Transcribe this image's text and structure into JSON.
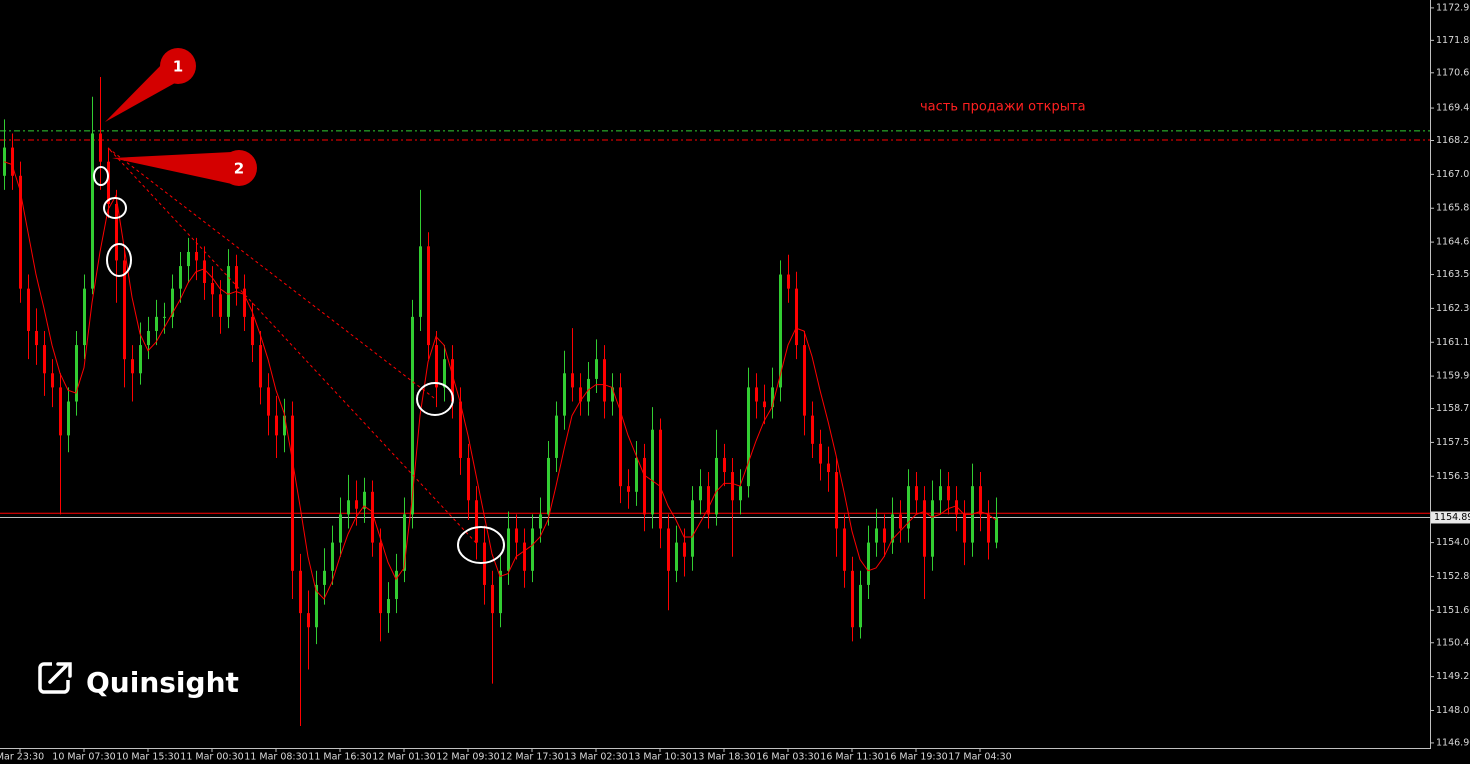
{
  "chart_data": {
    "type": "candlestick",
    "categories": [
      null,
      null,
      "Mar 23:30",
      null,
      null,
      null,
      null,
      null,
      null,
      null,
      "10 Mar 07:30",
      null,
      null,
      null,
      null,
      null,
      null,
      null,
      "10 Mar 15:30",
      null,
      null,
      null,
      null,
      null,
      null,
      null,
      "11 Mar 00:30",
      null,
      null,
      null,
      null,
      null,
      null,
      null,
      "11 Mar 08:30",
      null,
      null,
      null,
      null,
      null,
      null,
      null,
      "11 Mar 16:30",
      null,
      null,
      null,
      null,
      null,
      null,
      null,
      "12 Mar 01:30",
      null,
      null,
      null,
      null,
      null,
      null,
      null,
      "12 Mar 09:30",
      null,
      null,
      null,
      null,
      null,
      null,
      null,
      "12 Mar 17:30",
      null,
      null,
      null,
      null,
      null,
      null,
      null,
      "13 Mar 02:30",
      null,
      null,
      null,
      null,
      null,
      null,
      null,
      "13 Mar 10:30",
      null,
      null,
      null,
      null,
      null,
      null,
      null,
      "13 Mar 18:30",
      null,
      null,
      null,
      null,
      null,
      null,
      null,
      "16 Mar 03:30",
      null,
      null,
      null,
      null,
      null,
      null,
      null,
      "16 Mar 11:30",
      null,
      null,
      null,
      null,
      null,
      null,
      null,
      "16 Mar 19:30",
      null,
      null,
      null,
      null,
      null,
      null,
      null,
      "17 Mar 04:30",
      null,
      null
    ],
    "open": [
      1167.0,
      1168.0,
      1167.0,
      1163.0,
      1161.5,
      1161.0,
      1160.0,
      1159.5,
      1157.8,
      1159.0,
      1161.0,
      1163.0,
      1168.5,
      1167.5,
      1166.0,
      1164.0,
      1160.5,
      1160.0,
      1161.0,
      1161.5,
      1162.0,
      1162.0,
      1163.0,
      1163.8,
      1164.3,
      1164.0,
      1163.2,
      1162.8,
      1162.0,
      1163.8,
      1163.0,
      1162.0,
      1161.0,
      1159.5,
      1158.5,
      1157.8,
      1158.5,
      1153.0,
      1151.5,
      1151.0,
      1152.5,
      1153.0,
      1154.0,
      1155.0,
      1155.5,
      1155.2,
      1155.8,
      1154.0,
      1151.5,
      1152.0,
      1153.0,
      1155.0,
      1162.0,
      1164.5,
      1161.0,
      1159.5,
      1160.5,
      1159.0,
      1157.0,
      1155.5,
      1154.0,
      1152.5,
      1151.5,
      1153.0,
      1154.5,
      1154.0,
      1153.0,
      1154.5,
      1155.0,
      1157.0,
      1158.5,
      1160.0,
      1159.5,
      1159.0,
      1159.8,
      1160.5,
      1159.0,
      1159.5,
      1156.0,
      1155.8,
      1157.0,
      1155.0,
      1158.0,
      1154.5,
      1153.0,
      1154.0,
      1153.5,
      1155.5,
      1156.0,
      1155.0,
      1157.0,
      1156.5,
      1155.5,
      1156.0,
      1159.5,
      1159.0,
      1158.8,
      1159.5,
      1163.5,
      1163.0,
      1161.0,
      1158.5,
      1157.5,
      1156.8,
      1156.5,
      1154.5,
      1153.0,
      1151.0,
      1152.5,
      1154.0,
      1154.5,
      1154.0,
      1155.0,
      1154.5,
      1156.0,
      1155.5,
      1153.5,
      1155.5,
      1156.0,
      1155.5,
      1155.0,
      1154.0,
      1156.0,
      1155.0,
      1154.0
    ],
    "high": [
      1169.0,
      1168.5,
      1167.5,
      1163.5,
      1162.3,
      1161.5,
      1160.5,
      1160.0,
      1159.5,
      1161.5,
      1163.5,
      1169.8,
      1170.5,
      1168.0,
      1166.5,
      1164.5,
      1161.0,
      1161.8,
      1162.0,
      1162.6,
      1162.5,
      1163.5,
      1164.3,
      1164.8,
      1164.8,
      1164.5,
      1163.8,
      1163.3,
      1164.4,
      1164.2,
      1163.5,
      1162.5,
      1161.5,
      1160.0,
      1159.2,
      1159.1,
      1159.0,
      1153.6,
      1152.3,
      1153.0,
      1153.8,
      1154.6,
      1155.6,
      1156.4,
      1156.2,
      1156.3,
      1156.2,
      1154.5,
      1152.6,
      1153.6,
      1155.6,
      1162.6,
      1166.5,
      1165.0,
      1161.5,
      1161.0,
      1161.0,
      1159.5,
      1157.5,
      1156.0,
      1154.6,
      1153.0,
      1153.6,
      1155.1,
      1155.0,
      1154.5,
      1155.0,
      1155.6,
      1157.6,
      1159.0,
      1160.8,
      1161.6,
      1160.0,
      1160.4,
      1161.2,
      1161.0,
      1160.0,
      1160.0,
      1156.6,
      1157.6,
      1157.5,
      1158.8,
      1158.4,
      1155.0,
      1154.6,
      1154.5,
      1156.0,
      1156.6,
      1156.5,
      1158.0,
      1157.5,
      1157.0,
      1156.6,
      1160.2,
      1160.0,
      1159.6,
      1160.2,
      1164.0,
      1164.2,
      1163.6,
      1161.5,
      1159.0,
      1158.0,
      1157.4,
      1157.0,
      1155.0,
      1153.5,
      1153.0,
      1154.6,
      1155.2,
      1155.0,
      1155.6,
      1155.5,
      1156.6,
      1156.5,
      1156.0,
      1156.2,
      1156.6,
      1156.5,
      1156.0,
      1155.5,
      1156.8,
      1156.5,
      1155.5,
      1155.6
    ],
    "low": [
      1166.5,
      1166.5,
      1162.5,
      1160.5,
      1160.3,
      1159.2,
      1158.8,
      1155.0,
      1157.2,
      1158.5,
      1160.5,
      1162.8,
      1166.5,
      1165.5,
      1162.5,
      1159.5,
      1159.0,
      1159.6,
      1160.5,
      1161.0,
      1161.4,
      1161.6,
      1162.5,
      1163.2,
      1163.3,
      1162.6,
      1162.0,
      1161.4,
      1161.6,
      1162.4,
      1161.5,
      1160.4,
      1158.9,
      1157.8,
      1157.0,
      1157.2,
      1152.0,
      1147.5,
      1149.5,
      1150.4,
      1151.8,
      1152.5,
      1153.5,
      1154.5,
      1154.6,
      1154.7,
      1153.5,
      1150.5,
      1150.8,
      1151.5,
      1152.6,
      1154.5,
      1161.5,
      1160.5,
      1158.8,
      1159.0,
      1158.4,
      1156.4,
      1154.8,
      1153.4,
      1151.8,
      1149.0,
      1151.0,
      1152.5,
      1153.4,
      1152.4,
      1152.6,
      1154.0,
      1154.6,
      1156.5,
      1158.0,
      1159.0,
      1158.5,
      1158.5,
      1159.3,
      1158.4,
      1158.5,
      1155.4,
      1155.2,
      1155.3,
      1154.4,
      1154.5,
      1153.8,
      1151.6,
      1152.6,
      1152.8,
      1153.0,
      1155.0,
      1154.5,
      1154.6,
      1156.0,
      1153.5,
      1155.0,
      1155.6,
      1158.4,
      1158.2,
      1158.4,
      1159.0,
      1162.5,
      1160.5,
      1157.8,
      1157.0,
      1156.2,
      1155.8,
      1153.5,
      1152.4,
      1150.5,
      1150.6,
      1152.0,
      1153.5,
      1153.5,
      1153.6,
      1154.0,
      1154.0,
      1155.0,
      1152.0,
      1153.0,
      1155.0,
      1155.0,
      1154.4,
      1153.2,
      1153.5,
      1154.4,
      1153.4,
      1153.8
    ],
    "close": [
      1168.0,
      1167.0,
      1163.0,
      1161.5,
      1161.0,
      1160.0,
      1159.5,
      1157.8,
      1159.0,
      1161.0,
      1163.0,
      1168.5,
      1167.5,
      1166.0,
      1164.0,
      1160.5,
      1160.0,
      1161.0,
      1161.5,
      1162.0,
      1162.0,
      1163.0,
      1163.8,
      1164.3,
      1164.0,
      1163.2,
      1162.8,
      1162.0,
      1163.8,
      1163.0,
      1162.0,
      1161.0,
      1159.5,
      1158.5,
      1157.8,
      1158.5,
      1153.0,
      1151.5,
      1151.0,
      1152.5,
      1153.0,
      1154.0,
      1155.0,
      1155.5,
      1155.2,
      1155.8,
      1154.0,
      1151.5,
      1152.0,
      1153.0,
      1155.0,
      1162.0,
      1164.5,
      1161.0,
      1159.5,
      1160.5,
      1159.0,
      1157.0,
      1155.5,
      1154.0,
      1152.5,
      1151.5,
      1153.0,
      1154.5,
      1154.0,
      1153.0,
      1154.5,
      1155.0,
      1157.0,
      1158.5,
      1160.0,
      1159.5,
      1159.0,
      1159.8,
      1160.5,
      1159.0,
      1159.5,
      1156.0,
      1155.8,
      1157.0,
      1155.0,
      1158.0,
      1154.5,
      1153.0,
      1154.0,
      1153.5,
      1155.5,
      1156.0,
      1155.0,
      1157.0,
      1156.5,
      1155.5,
      1156.0,
      1159.5,
      1159.0,
      1158.8,
      1159.5,
      1163.5,
      1163.0,
      1161.0,
      1158.5,
      1157.5,
      1156.8,
      1156.5,
      1154.5,
      1153.0,
      1151.0,
      1152.5,
      1154.0,
      1154.5,
      1154.0,
      1155.0,
      1154.5,
      1156.0,
      1155.5,
      1153.5,
      1155.5,
      1156.0,
      1155.5,
      1155.0,
      1154.0,
      1156.0,
      1155.0,
      1154.0,
      1154.9
    ],
    "ma": [
      1167.5,
      1167.4,
      1166.5,
      1165.0,
      1163.5,
      1162.3,
      1161.0,
      1160.0,
      1159.4,
      1159.3,
      1160.2,
      1162.5,
      1164.3,
      1165.8,
      1166.3,
      1164.5,
      1162.7,
      1161.4,
      1160.8,
      1161.1,
      1161.6,
      1162.1,
      1162.6,
      1163.2,
      1163.6,
      1163.7,
      1163.4,
      1163.0,
      1162.8,
      1162.9,
      1162.8,
      1162.2,
      1161.4,
      1160.5,
      1159.4,
      1158.6,
      1157.0,
      1155.3,
      1153.5,
      1152.3,
      1152.0,
      1152.6,
      1153.5,
      1154.3,
      1154.9,
      1155.3,
      1155.1,
      1154.2,
      1153.3,
      1152.7,
      1153.1,
      1155.5,
      1158.5,
      1160.4,
      1161.3,
      1161.0,
      1160.0,
      1159.0,
      1157.8,
      1156.4,
      1155.0,
      1153.6,
      1152.8,
      1152.9,
      1153.5,
      1153.7,
      1153.9,
      1154.2,
      1154.8,
      1156.0,
      1157.3,
      1158.5,
      1159.0,
      1159.4,
      1159.6,
      1159.6,
      1159.5,
      1158.7,
      1157.8,
      1157.1,
      1156.4,
      1156.2,
      1156.0,
      1155.3,
      1154.8,
      1154.2,
      1154.2,
      1154.7,
      1155.2,
      1155.8,
      1156.1,
      1156.1,
      1156.0,
      1156.8,
      1157.6,
      1158.3,
      1158.8,
      1159.9,
      1161.0,
      1161.6,
      1161.5,
      1160.6,
      1159.4,
      1158.3,
      1157.1,
      1155.8,
      1154.4,
      1153.4,
      1153.0,
      1153.1,
      1153.5,
      1154.1,
      1154.4,
      1154.7,
      1155.0,
      1155.1,
      1154.9,
      1155.0,
      1155.2,
      1155.3,
      1155.0,
      1155.0,
      1155.1,
      1155.0,
      1154.8
    ],
    "up_color": "#32cd32",
    "down_color": "#ff0000",
    "ma_color": "#ff0000",
    "ylim": [
      1146.72,
      1173.23
    ],
    "yticks": [
      1172.95,
      {
        "value": 1171.8,
        "label": "1171.80"
      },
      1170.65,
      {
        "value": 1169.4,
        "label": "1169.40"
      },
      1168.25,
      1167.05,
      1165.85,
      1164.65,
      {
        "value": 1163.5,
        "label": "1163.50"
      },
      {
        "value": 1162.3,
        "label": "1162.30"
      },
      {
        "value": 1161.1,
        "label": "1161.10"
      },
      {
        "value": 1159.9,
        "label": "1159.90"
      },
      1158.75,
      1157.55,
      1156.35,
      {
        "value": 1154.0,
        "label": "1154.00"
      },
      {
        "value": 1152.8,
        "label": "1152.80"
      },
      {
        "value": 1151.6,
        "label": "1151.60"
      },
      1150.45,
      1149.25,
      1148.05,
      {
        "value": 1146.9,
        "label": "1146.90"
      }
    ],
    "last_price": 1154.89,
    "price_lines": [
      {
        "value": 1155.04,
        "color": "#ff0000"
      },
      {
        "value": 1154.89,
        "color": "#c0c0c0"
      }
    ],
    "levels": [
      {
        "value": 1168.59,
        "color": "#32cd32"
      },
      {
        "value": 1168.27,
        "color": "#ff0000"
      }
    ],
    "note": "часть продажи открыта",
    "markers": [
      "1",
      "2"
    ]
  },
  "brand": "Quinsight"
}
